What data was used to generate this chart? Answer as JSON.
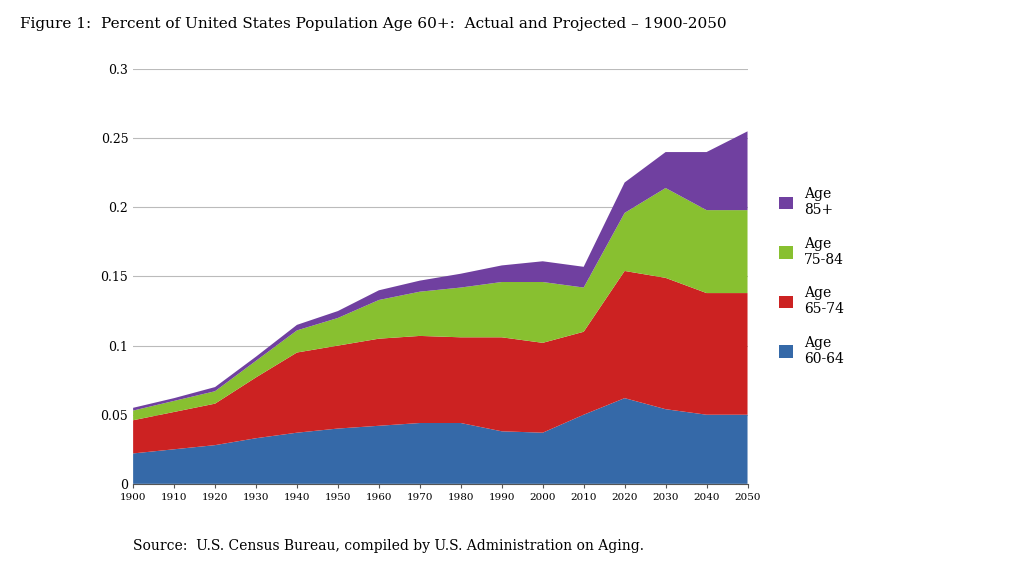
{
  "title": "Figure 1:  Percent of United States Population Age 60+:  Actual and Projected – 1900-2050",
  "source": "Source:  U.S. Census Bureau, compiled by U.S. Administration on Aging.",
  "years": [
    1900,
    1910,
    1920,
    1930,
    1940,
    1950,
    1960,
    1970,
    1980,
    1990,
    2000,
    2010,
    2020,
    2030,
    2040,
    2050
  ],
  "age_60_64": [
    0.022,
    0.025,
    0.028,
    0.033,
    0.037,
    0.04,
    0.042,
    0.044,
    0.044,
    0.038,
    0.037,
    0.05,
    0.062,
    0.054,
    0.05,
    0.05
  ],
  "age_65_74": [
    0.024,
    0.027,
    0.03,
    0.044,
    0.058,
    0.06,
    0.063,
    0.063,
    0.062,
    0.068,
    0.065,
    0.06,
    0.092,
    0.095,
    0.088,
    0.088
  ],
  "age_75_84": [
    0.007,
    0.008,
    0.009,
    0.012,
    0.016,
    0.02,
    0.028,
    0.032,
    0.036,
    0.04,
    0.044,
    0.032,
    0.042,
    0.065,
    0.06,
    0.06
  ],
  "age_85p": [
    0.002,
    0.002,
    0.003,
    0.003,
    0.004,
    0.005,
    0.007,
    0.008,
    0.01,
    0.012,
    0.015,
    0.015,
    0.022,
    0.026,
    0.042,
    0.057
  ],
  "colors": {
    "age_60_64": "#3569a8",
    "age_65_74": "#cc2222",
    "age_75_84": "#88c030",
    "age_85p": "#7040a0"
  },
  "legend_labels": {
    "age_85p": "Age\n85+",
    "age_75_84": "Age\n75-84",
    "age_65_74": "Age\n65-74",
    "age_60_64": "Age\n60-64"
  },
  "ylim": [
    0,
    0.3
  ],
  "yticks": [
    0,
    0.05,
    0.1,
    0.15,
    0.2,
    0.25,
    0.3
  ],
  "background_color": "#ffffff",
  "grid_color": "#bbbbbb",
  "title_fontsize": 11,
  "tick_fontsize": 9,
  "source_fontsize": 10
}
